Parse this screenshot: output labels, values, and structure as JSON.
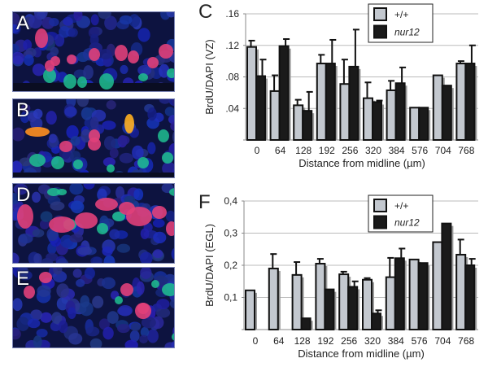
{
  "panels": [
    {
      "label": "A"
    },
    {
      "label": "B"
    },
    {
      "label": "D"
    },
    {
      "label": "E"
    }
  ],
  "colors": {
    "wt": "#c3c8cf",
    "mut": "#1a1a1a",
    "shadow": "#9a9a9a",
    "grid": "#bbbbbb"
  },
  "chart_data": [
    {
      "panel_label": "C",
      "type": "bar",
      "title": "",
      "xlabel": "Distance from midline (µm)",
      "ylabel": "BrdU/DAPI (VZ)",
      "ylim": [
        0,
        0.16
      ],
      "yticks": [
        0.04,
        0.08,
        0.12,
        0.16
      ],
      "ytick_labels": [
        ".04",
        ".08",
        ".12",
        ".16"
      ],
      "grid": true,
      "legend": "top-right",
      "categories": [
        "0",
        "64",
        "128",
        "192",
        "256",
        "320",
        "384",
        "576",
        "704",
        "768"
      ],
      "series": [
        {
          "name": "+/+",
          "italic": false,
          "values": [
            0.118,
            0.062,
            0.044,
            0.097,
            0.071,
            0.053,
            0.063,
            0.041,
            0.082,
            0.097
          ],
          "error_top": [
            0.126,
            0.082,
            0.051,
            0.108,
            0.102,
            0.073,
            0.075,
            null,
            null,
            0.1
          ]
        },
        {
          "name": "nur12",
          "italic": true,
          "values": [
            0.081,
            0.119,
            0.037,
            0.097,
            0.093,
            0.048,
            0.072,
            0.041,
            0.069,
            0.097
          ],
          "error_top": [
            0.102,
            0.128,
            0.061,
            0.127,
            0.14,
            0.05,
            0.092,
            null,
            null,
            0.12
          ]
        }
      ]
    },
    {
      "panel_label": "F",
      "type": "bar",
      "title": "",
      "xlabel": "Distance from midline (µm)",
      "ylabel": "BrdU/DAPI (EGL)",
      "ylim": [
        0,
        0.4
      ],
      "yticks": [
        0.1,
        0.2,
        0.3,
        0.4
      ],
      "ytick_labels": [
        "0,1",
        "0,2",
        "0,3",
        "0,4"
      ],
      "grid": true,
      "legend": "top-right",
      "categories": [
        "0",
        "64",
        "128",
        "192",
        "256",
        "320",
        "384",
        "576",
        "704",
        "768"
      ],
      "series": [
        {
          "name": "+/+",
          "italic": false,
          "values": [
            0.122,
            0.19,
            0.17,
            0.205,
            0.172,
            0.155,
            0.163,
            0.218,
            0.272,
            0.233
          ],
          "error_top": [
            null,
            0.235,
            0.21,
            0.22,
            0.18,
            0.16,
            0.223,
            null,
            null,
            0.28
          ]
        },
        {
          "name": "nur12",
          "italic": true,
          "values": [
            null,
            null,
            0.035,
            0.125,
            0.133,
            0.05,
            0.222,
            0.207,
            0.33,
            0.2
          ],
          "error_top": [
            null,
            null,
            null,
            null,
            0.15,
            0.06,
            0.252,
            null,
            null,
            0.22
          ]
        }
      ]
    }
  ]
}
